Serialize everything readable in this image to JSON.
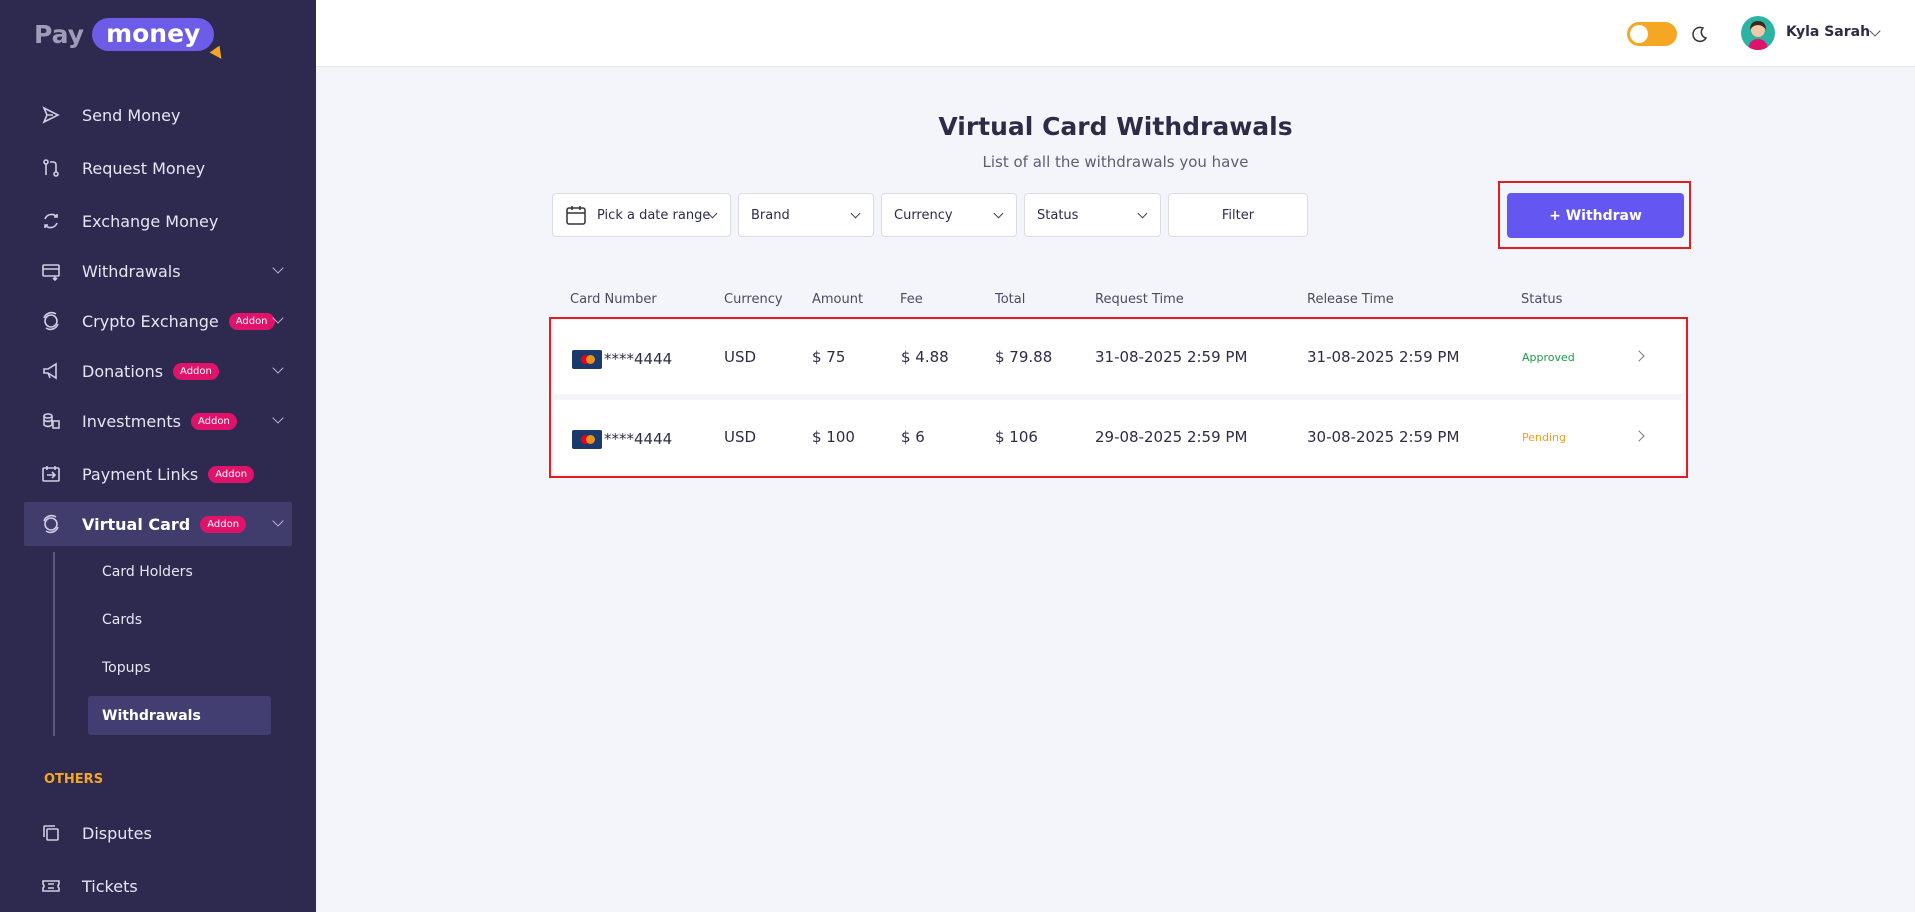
{
  "brand": {
    "pay": "Pay",
    "money": "money"
  },
  "sidebar": {
    "items": [
      {
        "label": "Send Money",
        "icon": "send-icon"
      },
      {
        "label": "Request Money",
        "icon": "request-icon"
      },
      {
        "label": "Exchange Money",
        "icon": "exchange-icon"
      },
      {
        "label": "Withdrawals",
        "icon": "withdraw-icon"
      },
      {
        "label": "Crypto Exchange",
        "icon": "crypto-icon",
        "badge": "Addon"
      },
      {
        "label": "Donations",
        "icon": "donation-icon",
        "badge": "Addon"
      },
      {
        "label": "Investments",
        "icon": "investment-icon",
        "badge": "Addon"
      },
      {
        "label": "Payment Links",
        "icon": "payment-link-icon",
        "badge": "Addon"
      },
      {
        "label": "Virtual Card",
        "icon": "virtual-card-icon",
        "badge": "Addon"
      }
    ],
    "sub_items": [
      {
        "label": "Card Holders"
      },
      {
        "label": "Cards"
      },
      {
        "label": "Topups"
      },
      {
        "label": "Withdrawals"
      }
    ],
    "section_others": "OTHERS",
    "others": [
      {
        "label": "Disputes",
        "icon": "disputes-icon"
      },
      {
        "label": "Tickets",
        "icon": "tickets-icon"
      }
    ]
  },
  "header": {
    "user_name": "Kyla Sarah",
    "theme_toggle": "on",
    "accent": "#f5a623"
  },
  "main": {
    "title": "Virtual Card Withdrawals",
    "subtitle": "List of all the withdrawals you have",
    "filters": {
      "date_range": "Pick a date range",
      "brand": "Brand",
      "currency": "Currency",
      "status": "Status",
      "filter_button": "Filter"
    },
    "withdraw_button": "+ Withdraw",
    "table": {
      "columns": [
        "Card Number",
        "Currency",
        "Amount",
        "Fee",
        "Total",
        "Request Time",
        "Release Time",
        "Status"
      ],
      "rows": [
        {
          "card": "****4444",
          "currency": "USD",
          "amount": "$ 75",
          "fee": "$ 4.88",
          "total": "$ 79.88",
          "request_time": "31-08-2025 2:59 PM",
          "release_time": "31-08-2025 2:59 PM",
          "status": "Approved"
        },
        {
          "card": "****4444",
          "currency": "USD",
          "amount": "$ 100",
          "fee": "$ 6",
          "total": "$ 106",
          "request_time": "29-08-2025 2:59 PM",
          "release_time": "30-08-2025 2:59 PM",
          "status": "Pending"
        }
      ]
    }
  }
}
